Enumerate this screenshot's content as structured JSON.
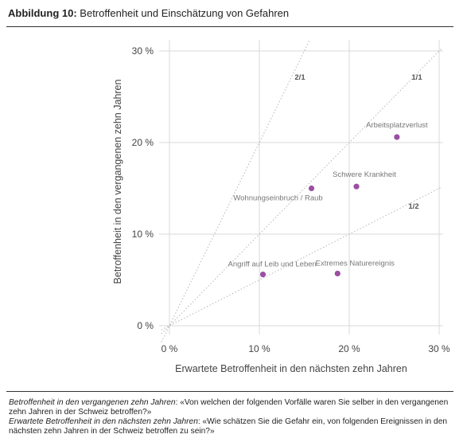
{
  "figure": {
    "label": "Abbildung 10:",
    "title": "Betroffenheit und Einschätzung von Gefahren"
  },
  "chart_data": {
    "type": "scatter",
    "xlabel": "Erwartete Betroffenheit in den nächsten zehn Jahren",
    "ylabel": "Betroffenheit in den vergangenen zehn Jahren",
    "xlim": [
      0,
      30
    ],
    "ylim": [
      0,
      30
    ],
    "x_ticks": [
      0,
      10,
      20,
      30
    ],
    "y_ticks": [
      0,
      10,
      20,
      30
    ],
    "x_tick_labels": [
      "0 %",
      "10 %",
      "20 %",
      "30 %"
    ],
    "y_tick_labels": [
      "0 %",
      "10 %",
      "20 %",
      "30 %"
    ],
    "grid": true,
    "point_color": "#9b4fa3",
    "points": [
      {
        "label": "Arbeitsplatzverlust",
        "x": 25.3,
        "y": 20.6
      },
      {
        "label": "Schwere Krankheit",
        "x": 20.8,
        "y": 15.2
      },
      {
        "label": "Wohnungseinbruch / Raub",
        "x": 15.8,
        "y": 15.0
      },
      {
        "label": "Extremes Naturereignis",
        "x": 18.7,
        "y": 5.7
      },
      {
        "label": "Angriff auf Leib und Leben",
        "x": 10.4,
        "y": 5.6
      }
    ],
    "reference_lines": [
      {
        "label": "2/1",
        "slope": 2
      },
      {
        "label": "1/1",
        "slope": 1
      },
      {
        "label": "1/2",
        "slope": 0.5
      }
    ]
  },
  "notes": {
    "line1_term": "Betroffenheit in den vergangenen zehn Jahren",
    "line1_text": ": «Von welchen der folgenden Vorfälle waren Sie selber in den vergangenen zehn Jahren in der Schweiz betroffen?»",
    "line2_term": "Erwartete Betroffenheit in den nächsten zehn Jahren",
    "line2_text": ": «Wie schätzen Sie die Gefahr ein, von folgenden Ereignissen in den nächsten zehn Jahren in der Schweiz betroffen zu sein?»"
  }
}
